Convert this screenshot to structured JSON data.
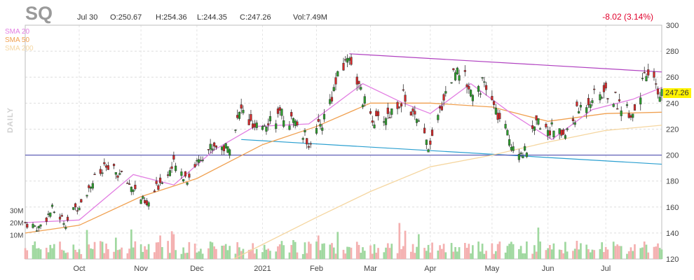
{
  "header": {
    "ticker": "SQ",
    "date": "Jul 30",
    "open": "O:250.67",
    "high": "H:254.36",
    "low": "L:244.35",
    "close": "C:247.26",
    "volume": "Vol:7.49M",
    "change": "-8.02 (3.14%)"
  },
  "legend": {
    "sma20": "SMA 20",
    "sma50": "SMA 50",
    "sma200": "SMA 200"
  },
  "period_label": "DAILY",
  "last_price_label": "247.26",
  "colors": {
    "up": "#2ca02c",
    "down": "#d62728",
    "sma20": "#e27ee2",
    "sma50": "#f0a050",
    "sma200": "#f5d6a0",
    "resistance": "#b040c0",
    "support": "#2a9fd0",
    "horizontal": "#5050b0",
    "vol_up": "#9fd89f",
    "vol_down": "#f4b0b0",
    "last_price_bg": "#fff200",
    "change": "#e0002b"
  },
  "chart_data": {
    "type": "candlestick",
    "price_axis": {
      "range": [
        120,
        300
      ],
      "ticks": [
        120,
        140,
        160,
        180,
        200,
        220,
        240,
        260,
        280,
        300
      ]
    },
    "volume_axis": {
      "ticks": [
        10,
        20,
        30
      ],
      "tick_labels": [
        "10M",
        "20M",
        "30M"
      ],
      "units": "M"
    },
    "x_tick_labels": [
      "Oct",
      "Nov",
      "Dec",
      "2021",
      "Feb",
      "Mar",
      "Apr",
      "May",
      "Jun",
      "Jul"
    ],
    "x_tick_dates": [
      "2020-10-01",
      "2020-11-02",
      "2020-12-01",
      "2021-01-04",
      "2021-02-01",
      "2021-03-01",
      "2021-04-01",
      "2021-05-03",
      "2021-06-01",
      "2021-07-01"
    ],
    "date_range": [
      "2020-09-03",
      "2021-07-30"
    ],
    "price_path": [
      [
        "2020-09-03",
        148
      ],
      [
        "2020-09-10",
        144
      ],
      [
        "2020-09-17",
        158
      ],
      [
        "2020-09-24",
        148
      ],
      [
        "2020-10-01",
        163
      ],
      [
        "2020-10-08",
        180
      ],
      [
        "2020-10-15",
        190
      ],
      [
        "2020-10-22",
        185
      ],
      [
        "2020-10-29",
        175
      ],
      [
        "2020-11-05",
        160
      ],
      [
        "2020-11-12",
        180
      ],
      [
        "2020-11-19",
        192
      ],
      [
        "2020-11-26",
        182
      ],
      [
        "2020-12-03",
        200
      ],
      [
        "2020-12-10",
        208
      ],
      [
        "2020-12-17",
        205
      ],
      [
        "2020-12-24",
        235
      ],
      [
        "2020-12-31",
        218
      ],
      [
        "2021-01-07",
        228
      ],
      [
        "2021-01-14",
        230
      ],
      [
        "2021-01-21",
        225
      ],
      [
        "2021-01-28",
        210
      ],
      [
        "2021-02-04",
        225
      ],
      [
        "2021-02-11",
        255
      ],
      [
        "2021-02-18",
        278
      ],
      [
        "2021-02-25",
        242
      ],
      [
        "2021-03-04",
        225
      ],
      [
        "2021-03-11",
        232
      ],
      [
        "2021-03-18",
        245
      ],
      [
        "2021-03-25",
        225
      ],
      [
        "2021-04-01",
        205
      ],
      [
        "2021-04-08",
        245
      ],
      [
        "2021-04-15",
        270
      ],
      [
        "2021-04-22",
        250
      ],
      [
        "2021-04-29",
        255
      ],
      [
        "2021-05-06",
        230
      ],
      [
        "2021-05-13",
        210
      ],
      [
        "2021-05-20",
        202
      ],
      [
        "2021-05-27",
        225
      ],
      [
        "2021-06-03",
        220
      ],
      [
        "2021-06-10",
        215
      ],
      [
        "2021-06-17",
        235
      ],
      [
        "2021-06-24",
        245
      ],
      [
        "2021-07-01",
        248
      ],
      [
        "2021-07-08",
        240
      ],
      [
        "2021-07-15",
        232
      ],
      [
        "2021-07-22",
        262
      ],
      [
        "2021-07-30",
        247.26
      ]
    ],
    "sma20": [
      [
        "2020-09-03",
        148
      ],
      [
        "2020-10-01",
        150
      ],
      [
        "2020-10-29",
        185
      ],
      [
        "2020-11-19",
        177
      ],
      [
        "2020-12-10",
        204
      ],
      [
        "2020-12-31",
        222
      ],
      [
        "2021-01-28",
        224
      ],
      [
        "2021-02-25",
        255
      ],
      [
        "2021-03-18",
        240
      ],
      [
        "2021-04-01",
        232
      ],
      [
        "2021-04-22",
        255
      ],
      [
        "2021-05-13",
        232
      ],
      [
        "2021-06-03",
        212
      ],
      [
        "2021-06-24",
        235
      ],
      [
        "2021-07-15",
        243
      ],
      [
        "2021-07-30",
        252
      ]
    ],
    "sma50": [
      [
        "2020-09-03",
        140
      ],
      [
        "2020-10-01",
        146
      ],
      [
        "2020-11-02",
        168
      ],
      [
        "2020-12-01",
        182
      ],
      [
        "2021-01-04",
        208
      ],
      [
        "2021-02-01",
        222
      ],
      [
        "2021-03-01",
        240
      ],
      [
        "2021-04-01",
        240
      ],
      [
        "2021-05-03",
        237
      ],
      [
        "2021-06-01",
        226
      ],
      [
        "2021-07-01",
        232
      ],
      [
        "2021-07-30",
        233
      ]
    ],
    "sma200": [
      [
        "2020-12-20",
        120
      ],
      [
        "2021-02-01",
        152
      ],
      [
        "2021-03-01",
        172
      ],
      [
        "2021-04-01",
        191
      ],
      [
        "2021-05-03",
        200
      ],
      [
        "2021-06-01",
        210
      ],
      [
        "2021-07-01",
        219
      ],
      [
        "2021-07-30",
        223
      ]
    ],
    "trendlines": [
      {
        "name": "resistance",
        "from": [
          "2021-02-18",
          278
        ],
        "to": [
          "2021-07-30",
          264
        ]
      },
      {
        "name": "support",
        "from": [
          "2020-12-24",
          212
        ],
        "to": [
          "2021-07-30",
          193
        ]
      },
      {
        "name": "horizontal",
        "from": [
          "2020-09-03",
          200
        ],
        "to": [
          "2021-07-30",
          200
        ]
      }
    ],
    "last_price": 247.26
  }
}
